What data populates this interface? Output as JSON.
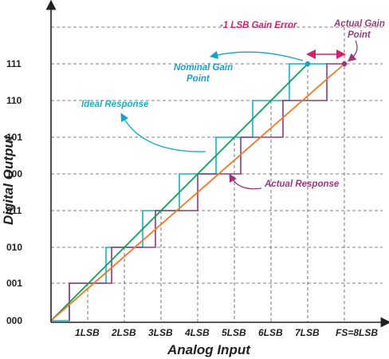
{
  "axes": {
    "x_title": "Analog Input",
    "y_title": "Digital Output",
    "y_ticks": [
      "000",
      "001",
      "010",
      "011",
      "100",
      "101",
      "110",
      "111"
    ],
    "x_ticks": [
      "1LSB",
      "2LSB",
      "3LSB",
      "4LSB",
      "5LSB",
      "6LSB",
      "7LSB",
      "FS=8LSB"
    ]
  },
  "annotations": {
    "gain_error": "-1 LSB Gain Error",
    "actual_gain_point": [
      "Actual Gain",
      "Point"
    ],
    "nominal_gain_point": [
      "Nominal Gain",
      "Point"
    ],
    "ideal_response": "Ideal Response",
    "actual_response": "Actual Response"
  },
  "colors": {
    "ideal_line": "#1a9a5c",
    "actual_line": "#f07a2a",
    "ideal_steps": "#1ab0c0",
    "actual_steps": "#8e3a7e",
    "gain_error": "#d6226e",
    "nominal_label": "#1aa0c8",
    "actual_label": "#9a3a7e",
    "grid": "#555555"
  }
}
